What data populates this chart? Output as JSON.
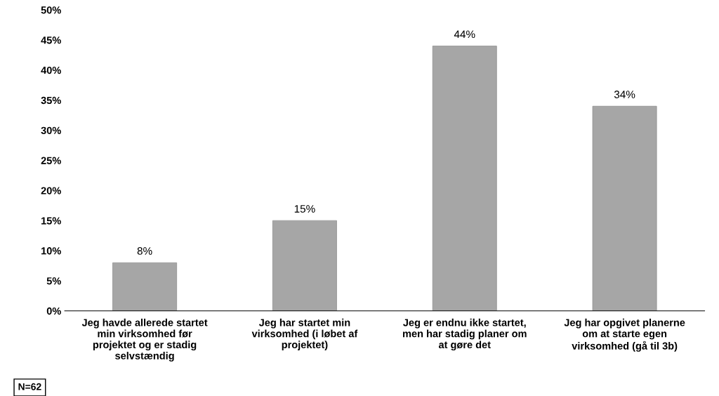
{
  "chart_data": {
    "type": "bar",
    "categories": [
      "Jeg havde allerede startet\nmin virksomhed før\nprojektet og er stadig\nselvstændig",
      "Jeg har startet min\nvirksomhed (i løbet af\nprojektet)",
      "Jeg er endnu ikke startet,\nmen har stadig planer om\nat gøre det",
      "Jeg har opgivet planerne\nom at starte egen\nvirksomhed (gå til 3b)"
    ],
    "values": [
      8,
      15,
      44,
      34
    ],
    "value_labels": [
      "8%",
      "15%",
      "44%",
      "34%"
    ],
    "color": "#a6a6a6",
    "ylim": [
      0,
      50
    ],
    "yticks": [
      {
        "value": 0,
        "label": "0%"
      },
      {
        "value": 5,
        "label": "5%"
      },
      {
        "value": 10,
        "label": "10%"
      },
      {
        "value": 15,
        "label": "15%"
      },
      {
        "value": 20,
        "label": "20%"
      },
      {
        "value": 25,
        "label": "25%"
      },
      {
        "value": 30,
        "label": "30%"
      },
      {
        "value": 35,
        "label": "35%"
      },
      {
        "value": 40,
        "label": "40%"
      },
      {
        "value": 45,
        "label": "45%"
      },
      {
        "value": 50,
        "label": "50%"
      }
    ],
    "annotations": [
      "N=62"
    ],
    "grid": false
  }
}
